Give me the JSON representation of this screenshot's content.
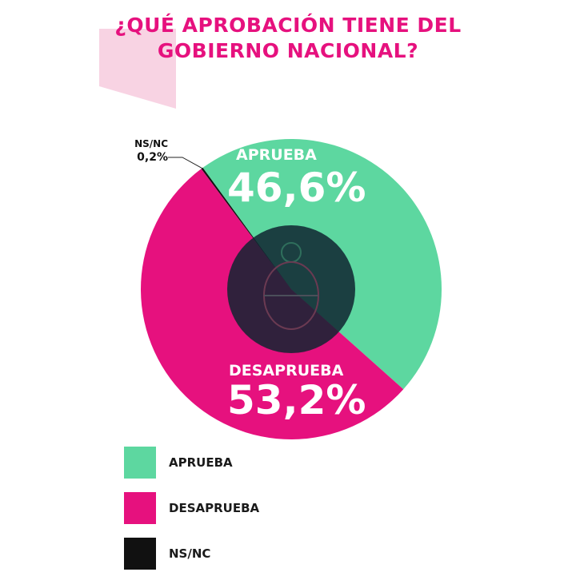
{
  "title_lines": [
    "¿QUÉ APROBACIÓN TIENE DEL",
    "GOBIERNO NACIONAL?"
  ],
  "colors": {
    "accent": "#e6117e",
    "aprueba": "#5dd7a0",
    "desaprueba": "#e6117e",
    "nsnc": "#111111",
    "decor": "#f8d3e3",
    "center": "#0f2530"
  },
  "chart_data": {
    "type": "pie",
    "title": "¿QUÉ APROBACIÓN TIENE DEL GOBIERNO NACIONAL?",
    "slices": [
      {
        "label": "APRUEBA",
        "value": 46.6,
        "value_text": "46,6%",
        "color": "#5dd7a0"
      },
      {
        "label": "DESAPRUEBA",
        "value": 53.2,
        "value_text": "53,2%",
        "color": "#e6117e"
      },
      {
        "label": "NS/NC",
        "value": 0.2,
        "value_text": "0,2%",
        "color": "#111111"
      }
    ],
    "legend_position": "bottom-left"
  },
  "legend": [
    {
      "label": "APRUEBA",
      "color": "#5dd7a0"
    },
    {
      "label": "DESAPRUEBA",
      "color": "#e6117e"
    },
    {
      "label": "NS/NC",
      "color": "#111111"
    }
  ]
}
